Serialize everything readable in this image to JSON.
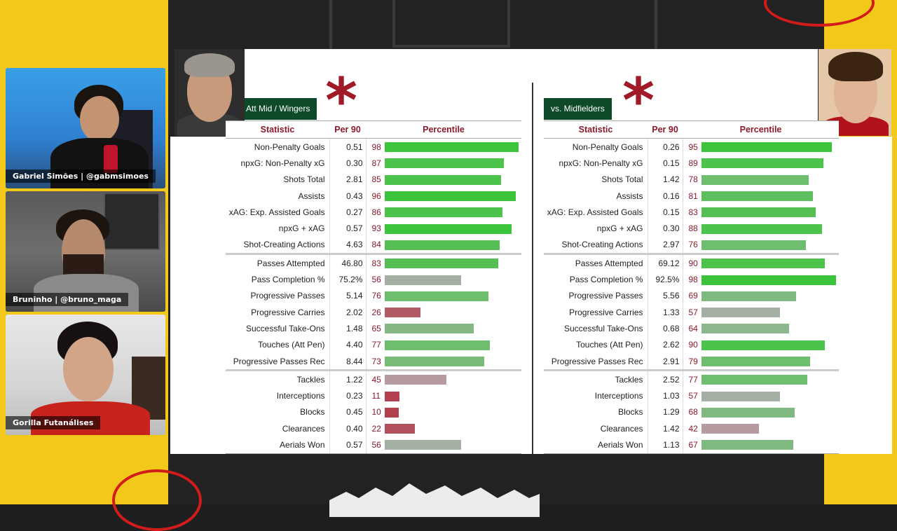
{
  "cams": [
    {
      "label": "Gabriel Simões | @gabmsimoes"
    },
    {
      "label": "Bruninho | @bruno_maga"
    },
    {
      "label": "Gorilla Futanálises"
    }
  ],
  "left_table": {
    "tag": "Att Mid / Wingers",
    "asterisk": "*",
    "headers": {
      "statistic": "Statistic",
      "per90": "Per 90",
      "percentile": "Percentile"
    },
    "rows": [
      {
        "stat": "Non-Penalty Goals",
        "per90": "0.51",
        "pct": 98,
        "color": "#3cc53c"
      },
      {
        "stat": "npxG: Non-Penalty xG",
        "per90": "0.30",
        "pct": 87,
        "color": "#4cc44c"
      },
      {
        "stat": "Shots Total",
        "per90": "2.81",
        "pct": 85,
        "color": "#4cc44c"
      },
      {
        "stat": "Assists",
        "per90": "0.43",
        "pct": 96,
        "color": "#3cc53c"
      },
      {
        "stat": "xAG: Exp. Assisted Goals",
        "per90": "0.27",
        "pct": 86,
        "color": "#4cc44c"
      },
      {
        "stat": "npxG + xAG",
        "per90": "0.57",
        "pct": 93,
        "color": "#3cc53c"
      },
      {
        "stat": "Shot-Creating Actions",
        "per90": "4.63",
        "pct": 84,
        "color": "#55bf55"
      },
      {
        "stat": "Passes Attempted",
        "per90": "46.80",
        "pct": 83,
        "color": "#55bf55",
        "sep": true
      },
      {
        "stat": "Pass Completion %",
        "per90": "75.2%",
        "pct": 56,
        "color": "#a4b0a4"
      },
      {
        "stat": "Progressive Passes",
        "per90": "5.14",
        "pct": 76,
        "color": "#6fbd6f"
      },
      {
        "stat": "Progressive Carries",
        "per90": "2.02",
        "pct": 26,
        "color": "#b35b65"
      },
      {
        "stat": "Successful Take-Ons",
        "per90": "1.48",
        "pct": 65,
        "color": "#86b886"
      },
      {
        "stat": "Touches (Att Pen)",
        "per90": "4.40",
        "pct": 77,
        "color": "#6fbd6f"
      },
      {
        "stat": "Progressive Passes Rec",
        "per90": "8.44",
        "pct": 73,
        "color": "#77bb77"
      },
      {
        "stat": "Tackles",
        "per90": "1.22",
        "pct": 45,
        "color": "#b59aa0",
        "sep": true
      },
      {
        "stat": "Interceptions",
        "per90": "0.23",
        "pct": 11,
        "color": "#b3404f"
      },
      {
        "stat": "Blocks",
        "per90": "0.45",
        "pct": 10,
        "color": "#b3404f"
      },
      {
        "stat": "Clearances",
        "per90": "0.40",
        "pct": 22,
        "color": "#b3505d"
      },
      {
        "stat": "Aerials Won",
        "per90": "0.57",
        "pct": 56,
        "color": "#a4b0a4"
      }
    ]
  },
  "right_table": {
    "tag": "vs. Midfielders",
    "asterisk": "*",
    "headers": {
      "statistic": "Statistic",
      "per90": "Per 90",
      "percentile": "Percentile"
    },
    "rows": [
      {
        "stat": "Non-Penalty Goals",
        "per90": "0.26",
        "pct": 95,
        "color": "#3cc53c"
      },
      {
        "stat": "npxG: Non-Penalty xG",
        "per90": "0.15",
        "pct": 89,
        "color": "#4cc44c"
      },
      {
        "stat": "Shots Total",
        "per90": "1.42",
        "pct": 78,
        "color": "#6fbd6f"
      },
      {
        "stat": "Assists",
        "per90": "0.16",
        "pct": 81,
        "color": "#5fbf5f"
      },
      {
        "stat": "xAG: Exp. Assisted Goals",
        "per90": "0.15",
        "pct": 83,
        "color": "#55bf55"
      },
      {
        "stat": "npxG + xAG",
        "per90": "0.30",
        "pct": 88,
        "color": "#4cc44c"
      },
      {
        "stat": "Shot-Creating Actions",
        "per90": "2.97",
        "pct": 76,
        "color": "#6fbd6f"
      },
      {
        "stat": "Passes Attempted",
        "per90": "69.12",
        "pct": 90,
        "color": "#4cc44c",
        "sep": true
      },
      {
        "stat": "Pass Completion %",
        "per90": "92.5%",
        "pct": 98,
        "color": "#3cc53c"
      },
      {
        "stat": "Progressive Passes",
        "per90": "5.56",
        "pct": 69,
        "color": "#80ba80"
      },
      {
        "stat": "Progressive Carries",
        "per90": "1.33",
        "pct": 57,
        "color": "#a4b0a4"
      },
      {
        "stat": "Successful Take-Ons",
        "per90": "0.68",
        "pct": 64,
        "color": "#8db78d"
      },
      {
        "stat": "Touches (Att Pen)",
        "per90": "2.62",
        "pct": 90,
        "color": "#4cc44c"
      },
      {
        "stat": "Progressive Passes Rec",
        "per90": "2.91",
        "pct": 79,
        "color": "#6fbd6f"
      },
      {
        "stat": "Tackles",
        "per90": "2.52",
        "pct": 77,
        "color": "#6fbd6f",
        "sep": true
      },
      {
        "stat": "Interceptions",
        "per90": "1.03",
        "pct": 57,
        "color": "#a4b0a4"
      },
      {
        "stat": "Blocks",
        "per90": "1.29",
        "pct": 68,
        "color": "#80ba80"
      },
      {
        "stat": "Clearances",
        "per90": "1.42",
        "pct": 42,
        "color": "#b59aa0"
      },
      {
        "stat": "Aerials Won",
        "per90": "1.13",
        "pct": 67,
        "color": "#80ba80"
      }
    ]
  }
}
